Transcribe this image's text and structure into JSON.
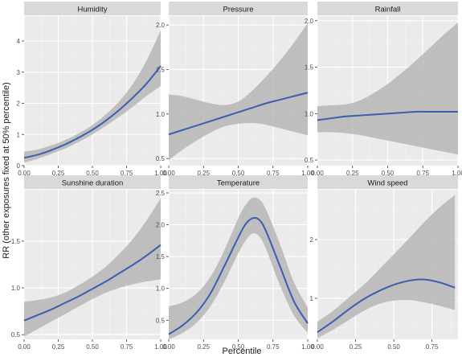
{
  "figure": {
    "ylabel": "RR (other exposures fixed at 50% percentile)",
    "xlabel": "Percentile"
  },
  "colors": {
    "panel_bg": "#ebebeb",
    "strip_bg": "#d9d9d9",
    "grid_major": "#ffffff",
    "grid_minor": "#f4f4f4",
    "line": "#3b5eb0",
    "ribbon": "#b3b3b3",
    "axis_text": "#4d4d4d",
    "title_text": "#1a1a1a"
  },
  "chart_data": [
    {
      "type": "line",
      "title": "Humidity",
      "xlim": [
        0,
        1
      ],
      "ylim": [
        0,
        4.8
      ],
      "x_ticks": [
        0,
        0.25,
        0.5,
        0.75,
        1.0
      ],
      "x_tick_labels": [
        "0.00",
        "0.25",
        "0.50",
        "0.75",
        "1.00"
      ],
      "y_ticks": [
        0,
        1,
        2,
        3,
        4
      ],
      "y_tick_labels": [
        "0",
        "1",
        "2",
        "3",
        "4"
      ],
      "x": [
        0,
        0.1,
        0.2,
        0.3,
        0.4,
        0.5,
        0.6,
        0.7,
        0.8,
        0.9,
        1.0
      ],
      "y": [
        0.25,
        0.35,
        0.5,
        0.68,
        0.9,
        1.15,
        1.45,
        1.8,
        2.2,
        2.65,
        3.2
      ],
      "lower": [
        0.1,
        0.22,
        0.38,
        0.55,
        0.76,
        1.0,
        1.28,
        1.58,
        1.9,
        2.25,
        2.55
      ],
      "upper": [
        0.45,
        0.52,
        0.65,
        0.82,
        1.04,
        1.3,
        1.65,
        2.08,
        2.65,
        3.4,
        4.35
      ]
    },
    {
      "type": "line",
      "title": "Pressure",
      "xlim": [
        0,
        1
      ],
      "ylim": [
        0.42,
        2.1
      ],
      "x_ticks": [
        0,
        0.25,
        0.5,
        0.75,
        1.0
      ],
      "x_tick_labels": [
        "0.00",
        "0.25",
        "0.50",
        "0.75",
        "1.00"
      ],
      "y_ticks": [
        0.5,
        1.0,
        1.5,
        2.0
      ],
      "y_tick_labels": [
        "0.5",
        "1.0",
        "1.5",
        "2.0"
      ],
      "x": [
        0,
        0.1,
        0.2,
        0.3,
        0.4,
        0.5,
        0.6,
        0.7,
        0.8,
        0.9,
        1.0
      ],
      "y": [
        0.77,
        0.82,
        0.87,
        0.92,
        0.97,
        1.02,
        1.07,
        1.12,
        1.16,
        1.2,
        1.24
      ],
      "lower": [
        0.48,
        0.6,
        0.7,
        0.79,
        0.86,
        0.89,
        0.9,
        0.88,
        0.84,
        0.8,
        0.76
      ],
      "upper": [
        1.22,
        1.2,
        1.16,
        1.12,
        1.1,
        1.14,
        1.26,
        1.42,
        1.6,
        1.8,
        2.02
      ]
    },
    {
      "type": "line",
      "title": "Rainfall",
      "xlim": [
        0,
        1
      ],
      "ylim": [
        0.44,
        2.05
      ],
      "x_ticks": [
        0,
        0.25,
        0.5,
        0.75,
        1.0
      ],
      "x_tick_labels": [
        "0.00",
        "0.25",
        "0.50",
        "0.75",
        "1.00"
      ],
      "y_ticks": [
        0.5,
        1.0,
        1.5,
        2.0
      ],
      "y_tick_labels": [
        "0.5",
        "1.0",
        "1.5",
        "2.0"
      ],
      "x": [
        0,
        0.1,
        0.2,
        0.3,
        0.4,
        0.5,
        0.6,
        0.7,
        0.8,
        0.9,
        1.0
      ],
      "y": [
        0.93,
        0.95,
        0.97,
        0.98,
        0.99,
        1.0,
        1.01,
        1.02,
        1.02,
        1.02,
        1.02
      ],
      "lower": [
        0.8,
        0.8,
        0.79,
        0.77,
        0.74,
        0.71,
        0.68,
        0.65,
        0.62,
        0.59,
        0.56
      ],
      "upper": [
        1.08,
        1.09,
        1.1,
        1.14,
        1.22,
        1.32,
        1.44,
        1.57,
        1.71,
        1.85,
        1.98
      ]
    },
    {
      "type": "line",
      "title": "Sunshine duration",
      "xlim": [
        0,
        1
      ],
      "ylim": [
        0.45,
        2.05
      ],
      "x_ticks": [
        0,
        0.25,
        0.5,
        0.75,
        1.0
      ],
      "x_tick_labels": [
        "0.00",
        "0.25",
        "0.50",
        "0.75",
        "1.00"
      ],
      "y_ticks": [
        0.5,
        1.0,
        1.5
      ],
      "y_tick_labels": [
        "0.5",
        "1.0",
        "1.5"
      ],
      "x": [
        0,
        0.1,
        0.2,
        0.3,
        0.4,
        0.5,
        0.6,
        0.7,
        0.8,
        0.9,
        1.0
      ],
      "y": [
        0.65,
        0.71,
        0.77,
        0.84,
        0.91,
        0.99,
        1.07,
        1.16,
        1.25,
        1.35,
        1.46
      ],
      "lower": [
        0.48,
        0.56,
        0.64,
        0.72,
        0.8,
        0.88,
        0.95,
        1.0,
        1.04,
        1.07,
        1.09
      ],
      "upper": [
        0.85,
        0.87,
        0.9,
        0.95,
        1.03,
        1.12,
        1.23,
        1.37,
        1.53,
        1.73,
        1.96
      ]
    },
    {
      "type": "line",
      "title": "Temperature",
      "xlim": [
        0,
        1
      ],
      "ylim": [
        0.2,
        2.55
      ],
      "x_ticks": [
        0,
        0.25,
        0.5,
        0.75,
        1.0
      ],
      "x_tick_labels": [
        "0.00",
        "0.25",
        "0.50",
        "0.75",
        "1.00"
      ],
      "y_ticks": [
        0.5,
        1.0,
        1.5,
        2.0,
        2.5
      ],
      "y_tick_labels": [
        "0.5",
        "1.0",
        "1.5",
        "2.0",
        "2.5"
      ],
      "x": [
        0,
        0.1,
        0.2,
        0.3,
        0.4,
        0.5,
        0.55,
        0.6,
        0.65,
        0.7,
        0.8,
        0.9,
        1.0
      ],
      "y": [
        0.28,
        0.42,
        0.62,
        0.92,
        1.35,
        1.8,
        2.0,
        2.1,
        2.08,
        1.9,
        1.35,
        0.8,
        0.45
      ],
      "lower": [
        0.2,
        0.3,
        0.46,
        0.72,
        1.1,
        1.55,
        1.74,
        1.86,
        1.82,
        1.62,
        1.05,
        0.58,
        0.3
      ],
      "upper": [
        0.72,
        0.78,
        0.92,
        1.18,
        1.6,
        2.1,
        2.3,
        2.42,
        2.4,
        2.24,
        1.7,
        1.1,
        0.7
      ]
    },
    {
      "type": "line",
      "title": "Wind speed",
      "xlim": [
        0,
        0.92
      ],
      "ylim": [
        0.3,
        2.85
      ],
      "x_ticks": [
        0,
        0.25,
        0.5,
        0.75
      ],
      "x_tick_labels": [
        "0.00",
        "0.25",
        "0.50",
        "0.75"
      ],
      "y_ticks": [
        1,
        2
      ],
      "y_tick_labels": [
        "1",
        "2"
      ],
      "x": [
        0,
        0.1,
        0.2,
        0.3,
        0.4,
        0.5,
        0.6,
        0.7,
        0.8,
        0.9
      ],
      "y": [
        0.42,
        0.6,
        0.8,
        0.98,
        1.12,
        1.23,
        1.3,
        1.32,
        1.27,
        1.18
      ],
      "lower": [
        0.32,
        0.46,
        0.62,
        0.78,
        0.9,
        0.96,
        0.97,
        0.93,
        0.87,
        0.8
      ],
      "upper": [
        0.6,
        0.78,
        1.0,
        1.22,
        1.48,
        1.75,
        2.02,
        2.3,
        2.55,
        2.76
      ]
    }
  ]
}
